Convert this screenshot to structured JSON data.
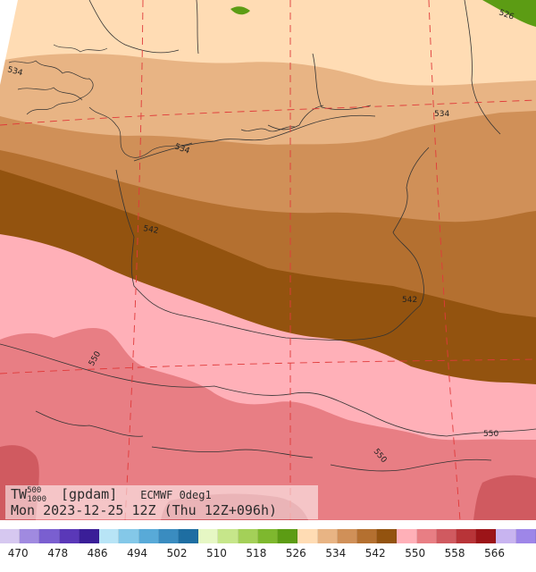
{
  "title": {
    "variable": "TW",
    "superscript": "500",
    "subscript": "1000",
    "unit": "[gpdam]",
    "model": "ECMWF 0deg1",
    "valid_time": "Mon 2023-12-25 12Z (Thu 12Z+096h)"
  },
  "contour_labels": [
    "534",
    "534",
    "534",
    "542",
    "542",
    "550",
    "550",
    "550",
    "526"
  ],
  "colorbar": {
    "colors": [
      "#d6c8f0",
      "#a08ae0",
      "#7a5fd0",
      "#5a38b8",
      "#3a1e98",
      "#b8e4f6",
      "#84c8e8",
      "#58aad8",
      "#3a8cc0",
      "#1e6ea2",
      "#e6f7c4",
      "#c6e68a",
      "#a4d058",
      "#7eb82e",
      "#5c9c14",
      "#ffdcb4",
      "#e8b484",
      "#d09058",
      "#b47030",
      "#93530f",
      "#ffb0b8",
      "#e87e84",
      "#d05a60",
      "#b83438",
      "#9c1418",
      "#c8b4f0",
      "#9e86e8"
    ],
    "tick_labels": [
      "470",
      "478",
      "486",
      "494",
      "502",
      "510",
      "518",
      "526",
      "534",
      "542",
      "550",
      "558",
      "566"
    ]
  },
  "bands": {
    "b526": "#ffdcb4",
    "b534": "#e8b484",
    "b542a": "#d09058",
    "b542b": "#b47030",
    "b546": "#93530f",
    "b550": "#ffb0b8",
    "b554": "#e87e84",
    "b558": "#d05a60",
    "green": "#5c9c14"
  }
}
